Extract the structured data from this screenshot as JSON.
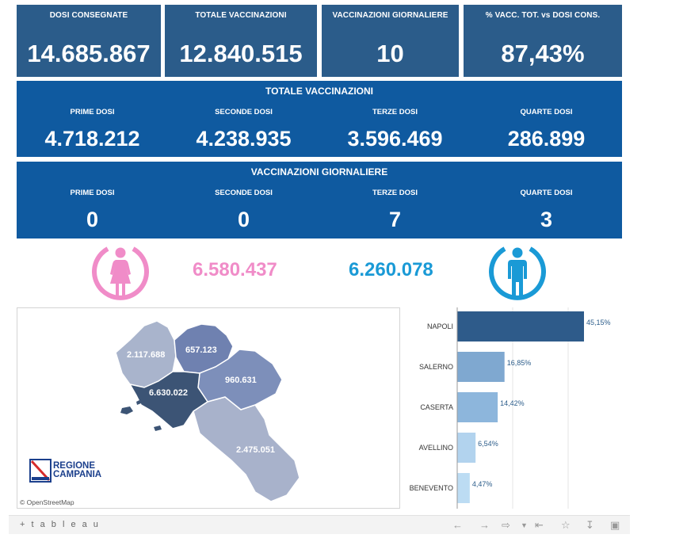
{
  "kpis": [
    {
      "label": "DOSI  CONSEGNATE",
      "value": "14.685.867"
    },
    {
      "label": "TOTALE VACCINAZIONI",
      "value": "12.840.515"
    },
    {
      "label": "VACCINAZIONI GIORNALIERE",
      "value": "10"
    },
    {
      "label": "% VACC. TOT. vs DOSI CONS.",
      "value": "87,43%"
    }
  ],
  "totale_panel": {
    "title": "TOTALE VACCINAZIONI",
    "cols": [
      {
        "label": "PRIME DOSI",
        "value": "4.718.212"
      },
      {
        "label": "SECONDE DOSI",
        "value": "4.238.935"
      },
      {
        "label": "TERZE DOSI",
        "value": "3.596.469"
      },
      {
        "label": "QUARTE DOSI",
        "value": "286.899"
      }
    ]
  },
  "giornaliere_panel": {
    "title": "VACCINAZIONI GIORNALIERE",
    "cols": [
      {
        "label": "PRIME DOSI",
        "value": "0"
      },
      {
        "label": "SECONDE DOSI",
        "value": "0"
      },
      {
        "label": "TERZE DOSI",
        "value": "7"
      },
      {
        "label": "QUARTE DOSI",
        "value": "3"
      }
    ]
  },
  "gender": {
    "female_value": "6.580.437",
    "male_value": "6.260.078",
    "female_color": "#f08cc8",
    "male_color": "#1a9ad6",
    "female_icon": "female-icon",
    "male_icon": "male-icon"
  },
  "map": {
    "provinces": [
      {
        "name": "Caserta",
        "label": "2.117.688",
        "color": "#a9b4cc"
      },
      {
        "name": "Benevento",
        "label": "657.123",
        "color": "#6f81b0"
      },
      {
        "name": "Avellino",
        "label": "960.631",
        "color": "#7d8fba"
      },
      {
        "name": "Napoli",
        "label": "6.630.022",
        "color": "#3c5475"
      },
      {
        "name": "Salerno",
        "label": "2.475.051",
        "color": "#a8b2cb"
      }
    ],
    "logo_line1": "REGIONE",
    "logo_line2": "CAMPANIA",
    "attribution": "© OpenStreetMap"
  },
  "chart_data": {
    "type": "bar",
    "orientation": "horizontal",
    "categories": [
      "NAPOLI",
      "SALERNO",
      "CASERTA",
      "AVELLINO",
      "BENEVENTO"
    ],
    "values": [
      45.15,
      16.85,
      14.42,
      6.54,
      4.47
    ],
    "value_labels": [
      "45,15%",
      "16,85%",
      "14,42%",
      "6,54%",
      "4,47%"
    ],
    "colors": [
      "#2e5b8a",
      "#7fa8d0",
      "#8db6dc",
      "#b2d3ee",
      "#bcdcf3"
    ],
    "grid": true
  },
  "toolbar": {
    "logo": "+ t a b l e a u",
    "icons": [
      "undo-icon",
      "redo-icon",
      "revert-icon",
      "dropdown-icon",
      "revert-all-icon",
      "share-icon",
      "download-icon",
      "fullscreen-icon"
    ]
  }
}
